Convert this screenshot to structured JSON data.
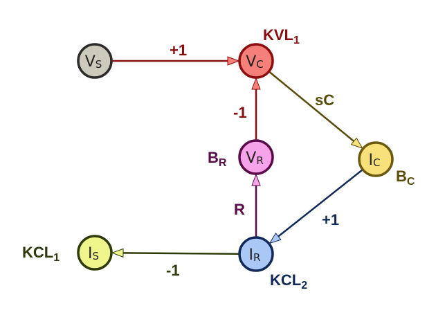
{
  "nodes": [
    {
      "id": "vs",
      "main": "V",
      "sub": "S",
      "fill": "#cdc9bd",
      "stroke": "#2b2b27",
      "tag": "",
      "tag_sub": "",
      "tag_color": ""
    },
    {
      "id": "vc",
      "main": "V",
      "sub": "C",
      "fill": "#f5807a",
      "stroke": "#8b0d0d",
      "tag": "KVL",
      "tag_sub": "1",
      "tag_color": "#8b0d0d"
    },
    {
      "id": "vr",
      "main": "V",
      "sub": "R",
      "fill": "#f6a3ea",
      "stroke": "#5a0a48",
      "tag": "B",
      "tag_sub": "R",
      "tag_color": "#5a0a48"
    },
    {
      "id": "ic",
      "main": "I",
      "sub": "C",
      "fill": "#f8e07a",
      "stroke": "#6b5a0d",
      "tag": "B",
      "tag_sub": "C",
      "tag_color": "#5a4a08"
    },
    {
      "id": "ir",
      "main": "I",
      "sub": "R",
      "fill": "#a9c8f5",
      "stroke": "#10295a",
      "tag": "KCL",
      "tag_sub": "2",
      "tag_color": "#10295a"
    },
    {
      "id": "is",
      "main": "I",
      "sub": "S",
      "fill": "#eef58a",
      "stroke": "#2f3a0a",
      "tag": "KCL",
      "tag_sub": "1",
      "tag_color": "#2f3a0a"
    }
  ],
  "edges": [
    {
      "from": "vs",
      "to": "vc",
      "label": "+1",
      "color": "#8b0d0d",
      "arrow_fill": "#f5807a"
    },
    {
      "from": "vr",
      "to": "vc",
      "label": "-1",
      "color": "#8b0d0d",
      "arrow_fill": "#f5807a"
    },
    {
      "from": "vc",
      "to": "ic",
      "label": "sC",
      "color": "#5a4a08",
      "arrow_fill": "#f8e07a"
    },
    {
      "from": "ic",
      "to": "ir",
      "label": "+1",
      "color": "#10295a",
      "arrow_fill": "#a9c8f5"
    },
    {
      "from": "ir",
      "to": "vr",
      "label": "R",
      "color": "#5a0a48",
      "arrow_fill": "#f6a3ea"
    },
    {
      "from": "ir",
      "to": "is",
      "label": "-1",
      "color": "#2f3a0a",
      "arrow_fill": "#eef58a"
    }
  ]
}
